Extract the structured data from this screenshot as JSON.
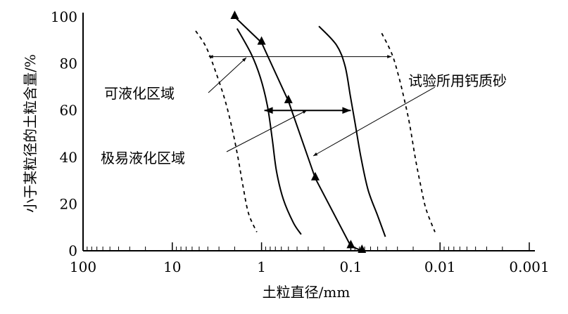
{
  "chart_data": {
    "type": "line",
    "xlabel": "土粒直径/mm",
    "ylabel": "小于某粒径的土粒含量/%",
    "x_scale": "log",
    "x_reversed": true,
    "xlim": [
      100,
      0.001
    ],
    "ylim": [
      0,
      100
    ],
    "x_ticks": [
      "100",
      "10",
      "1",
      "0.1",
      "0.01",
      "0.001"
    ],
    "y_ticks": [
      "0",
      "20",
      "40",
      "60",
      "80",
      "100"
    ],
    "grid": false,
    "series": [
      {
        "style": "dashed",
        "x": [
          5.47,
          4.17,
          3.23,
          2.55,
          2.13,
          1.84,
          1.62,
          1.4,
          1.13
        ],
        "y": [
          94,
          87,
          76,
          64,
          52,
          40,
          28,
          16,
          8
        ]
      },
      {
        "style": "solid",
        "x": [
          1.88,
          1.3,
          1.03,
          0.86,
          0.76,
          0.68,
          0.57,
          0.44,
          0.36
        ],
        "y": [
          95,
          84,
          74,
          62,
          48,
          34,
          22,
          12,
          7
        ]
      },
      {
        "name": "试验所用钙质砂",
        "style": "solid-triangle",
        "x": [
          2.0,
          1.0,
          0.5,
          0.25,
          0.1,
          0.075
        ],
        "y": [
          100,
          89,
          64,
          31,
          2,
          0
        ]
      },
      {
        "style": "solid",
        "x": [
          0.228,
          0.145,
          0.116,
          0.101,
          0.089,
          0.077,
          0.064,
          0.05,
          0.041
        ],
        "y": [
          96,
          88,
          79,
          66,
          54,
          40,
          26,
          15,
          6
        ]
      },
      {
        "style": "dashed",
        "x": [
          0.045,
          0.0345,
          0.0288,
          0.0249,
          0.0219,
          0.019,
          0.0167,
          0.0144,
          0.0114
        ],
        "y": [
          93,
          84,
          74,
          64,
          54,
          40,
          29,
          18,
          8
        ]
      }
    ],
    "ranges": [
      {
        "label": "可液化区域",
        "y": 83,
        "x_from": 3.9,
        "x_to": 0.035
      },
      {
        "label": "极易液化区域",
        "y": 60,
        "x_from": 0.93,
        "x_to": 0.1
      }
    ],
    "annotations": [
      "可液化区域",
      "极易液化区域",
      "试验所用钙质砂"
    ]
  }
}
